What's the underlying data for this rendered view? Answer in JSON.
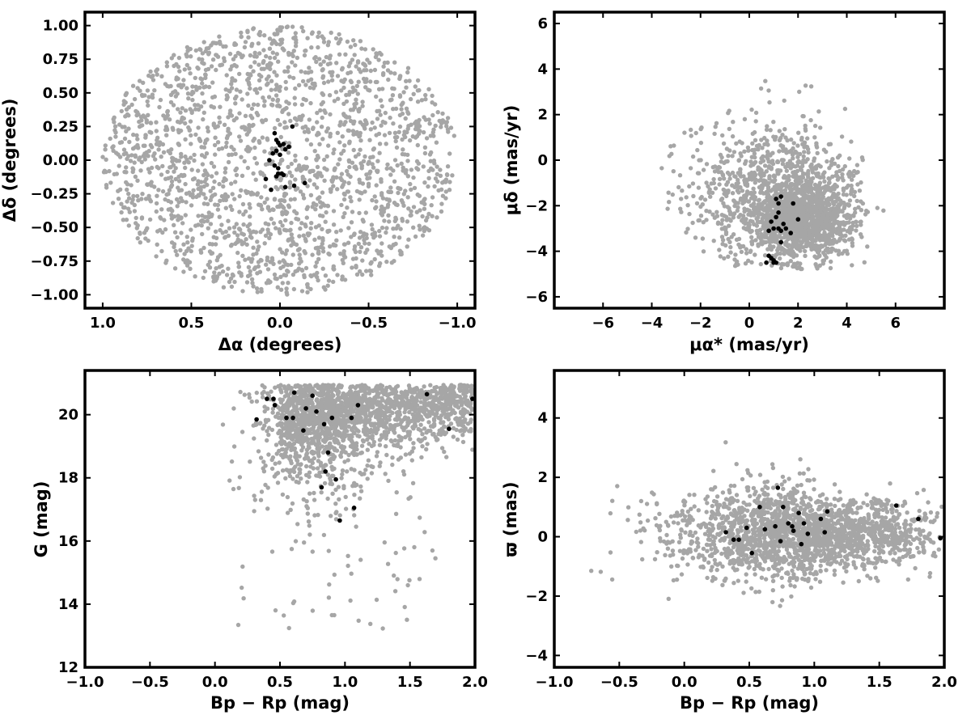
{
  "colors": {
    "field_stars": "#a6a6a6",
    "members": "#000000",
    "frame": "#000000"
  },
  "chart_data": [
    {
      "type": "scatter",
      "id": "sky",
      "xlabel": "Δα (degrees)",
      "ylabel": "Δδ (degrees)",
      "xlim": [
        1.1,
        -1.1
      ],
      "ylim": [
        -1.1,
        1.1
      ],
      "xticks": [
        1.0,
        0.5,
        0.0,
        -0.5,
        -1.0
      ],
      "xtick_labels": [
        "1.0",
        "0.5",
        "0.0",
        "−0.5",
        "−1.0"
      ],
      "yticks": [
        1.0,
        0.75,
        0.5,
        0.25,
        0.0,
        -0.25,
        -0.5,
        -0.75,
        -1.0
      ],
      "ytick_labels": [
        "1.00",
        "0.75",
        "0.50",
        "0.25",
        "0.00",
        "−0.25",
        "−0.50",
        "−0.75",
        "−1.00"
      ],
      "field": {
        "count": 2000,
        "shape": "disk",
        "center": [
          0,
          0
        ],
        "radius": 1.0
      },
      "members": {
        "x": [
          0.03,
          0.02,
          -0.02,
          -0.05,
          -0.03,
          0.0,
          0.02,
          0.04,
          0.06,
          0.03,
          0.01,
          -0.01,
          0.02,
          -0.02,
          -0.03,
          0.05,
          0.08,
          0.01,
          -0.08,
          0.0,
          0.01,
          -0.14,
          -0.07
        ],
        "y": [
          0.2,
          0.15,
          0.12,
          0.1,
          0.08,
          0.11,
          0.07,
          0.05,
          0.0,
          -0.04,
          -0.06,
          -0.1,
          -0.12,
          -0.11,
          -0.2,
          -0.22,
          -0.14,
          -0.1,
          -0.19,
          0.04,
          0.13,
          -0.17,
          0.25
        ]
      }
    },
    {
      "type": "scatter",
      "id": "proper-motion",
      "xlabel": "μα* (mas/yr)",
      "ylabel": "μδ (mas/yr)",
      "xlim": [
        -8,
        8
      ],
      "ylim": [
        -6.5,
        6.5
      ],
      "xticks": [
        -6,
        -4,
        -2,
        0,
        2,
        4,
        6
      ],
      "xtick_labels": [
        "−6",
        "−4",
        "−2",
        "0",
        "2",
        "4",
        "6"
      ],
      "yticks": [
        6,
        4,
        2,
        0,
        -2,
        -4,
        -6
      ],
      "ytick_labels": [
        "6",
        "4",
        "2",
        "0",
        "−2",
        "−4",
        "−6"
      ],
      "field": {
        "count": 2000,
        "shape": "blob",
        "center": [
          1.0,
          -1.5
        ],
        "spread": [
          1.9,
          1.9
        ]
      },
      "members": {
        "x": [
          0.8,
          0.9,
          1.0,
          1.0,
          1.1,
          1.2,
          1.3,
          1.3,
          1.4,
          1.5,
          1.8,
          2.0,
          1.1,
          1.2,
          0.9,
          0.8,
          1.0,
          1.1,
          1.7,
          1.3,
          1.2,
          0.7
        ],
        "y": [
          -4.2,
          -4.3,
          -4.4,
          -4.5,
          -4.5,
          -3.0,
          -3.1,
          -3.6,
          -2.8,
          -3.0,
          -1.9,
          -2.6,
          -1.7,
          -1.9,
          -2.7,
          -3.1,
          -3.0,
          -2.5,
          -3.2,
          -1.6,
          -2.3,
          -4.5
        ]
      }
    },
    {
      "type": "scatter",
      "id": "cmd",
      "xlabel": "Bp − Rp (mag)",
      "ylabel": "G (mag)",
      "xlim": [
        -1.0,
        2.0
      ],
      "ylim": [
        12,
        21.4
      ],
      "xticks": [
        -1.0,
        -0.5,
        0.0,
        0.5,
        1.0,
        1.5,
        2.0
      ],
      "xtick_labels": [
        "−1.0",
        "−0.5",
        "0.0",
        "0.5",
        "1.0",
        "1.5",
        "2.0"
      ],
      "yticks": [
        20,
        18,
        16,
        14,
        12
      ],
      "ytick_labels": [
        "20",
        "18",
        "16",
        "14",
        "12"
      ],
      "field": {
        "count": 2000,
        "shape": "cmd-wedge",
        "mag_limit": 21.0
      },
      "members": {
        "x": [
          0.32,
          0.4,
          0.46,
          0.55,
          0.6,
          0.61,
          0.68,
          0.7,
          0.75,
          0.78,
          0.82,
          0.84,
          0.87,
          0.9,
          0.93,
          0.96,
          1.05,
          1.07,
          1.1,
          1.63,
          1.8,
          1.98,
          0.45,
          0.85
        ],
        "y": [
          19.85,
          20.5,
          20.3,
          19.9,
          19.9,
          20.7,
          19.5,
          20.2,
          20.6,
          20.1,
          17.7,
          19.7,
          18.8,
          19.9,
          17.95,
          16.65,
          19.9,
          17.05,
          20.3,
          20.65,
          19.55,
          20.5,
          20.5,
          18.2
        ]
      }
    },
    {
      "type": "scatter",
      "id": "parallax",
      "xlabel": "Bp − Rp (mag)",
      "ylabel": "ϖ (mas)",
      "xlim": [
        -1.0,
        2.0
      ],
      "ylim": [
        -4.4,
        5.6
      ],
      "xticks": [
        -1.0,
        -0.5,
        0.0,
        0.5,
        1.0,
        1.5,
        2.0
      ],
      "xtick_labels": [
        "−1.0",
        "−0.5",
        "0.0",
        "0.5",
        "1.0",
        "1.5",
        "2.0"
      ],
      "yticks": [
        4,
        2,
        0,
        -2,
        -4
      ],
      "ytick_labels": [
        "4",
        "2",
        "0",
        "−2",
        "−4"
      ],
      "field": {
        "count": 2000,
        "shape": "band",
        "center_x": 0.9,
        "spread_x": 0.5,
        "center_y": 0.1,
        "spread_y": 0.8
      },
      "members": {
        "x": [
          0.32,
          0.38,
          0.42,
          0.48,
          0.52,
          0.58,
          0.62,
          0.7,
          0.72,
          0.76,
          0.8,
          0.83,
          0.84,
          0.88,
          0.9,
          0.92,
          0.95,
          1.05,
          1.08,
          1.1,
          1.63,
          1.8,
          1.97,
          0.74
        ],
        "y": [
          0.15,
          -0.1,
          -0.1,
          0.3,
          -0.55,
          1.0,
          0.25,
          0.35,
          1.65,
          1.0,
          0.45,
          0.35,
          0.2,
          0.8,
          -0.25,
          0.45,
          0.1,
          0.6,
          0.15,
          0.85,
          1.05,
          0.6,
          -0.05,
          -0.15
        ]
      }
    }
  ]
}
